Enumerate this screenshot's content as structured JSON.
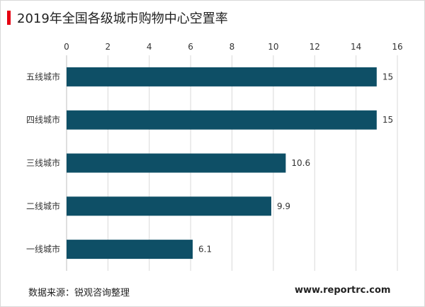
{
  "title": "2019年全国各级城市购物中心空置率",
  "source": "数据来源：锐观咨询整理",
  "website": "www.reportrc.com",
  "colors": {
    "bar": "#0e4f66",
    "accent": "#e60012"
  },
  "chart_data": {
    "type": "bar",
    "orientation": "horizontal",
    "categories": [
      "五线城市",
      "四线城市",
      "三线城市",
      "二线城市",
      "一线城市"
    ],
    "values": [
      15,
      15,
      10.6,
      9.9,
      6.1
    ],
    "data_labels": [
      "15",
      "15",
      "10.6",
      "9.9",
      "6.1"
    ],
    "xlim": [
      0,
      16
    ],
    "x_ticks": [
      0,
      2,
      4,
      6,
      8,
      10,
      12,
      14,
      16
    ],
    "x_axis_position": "top",
    "grid": true
  }
}
